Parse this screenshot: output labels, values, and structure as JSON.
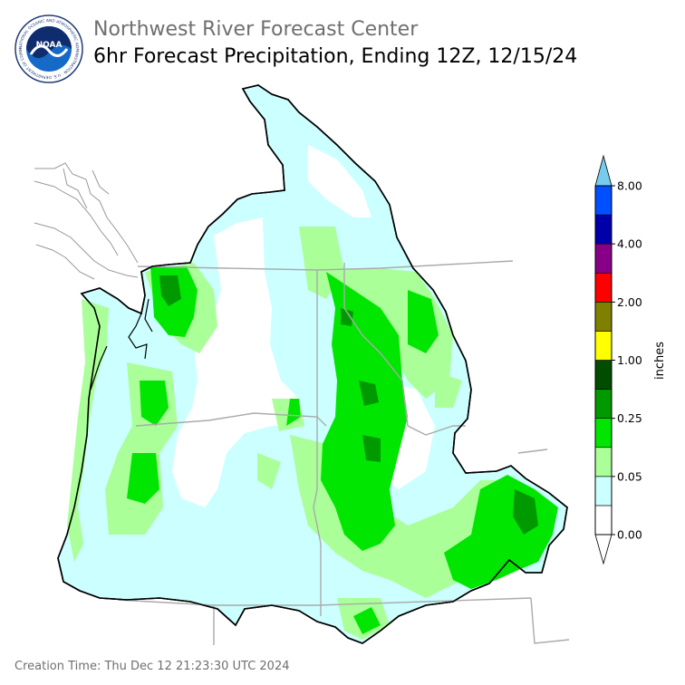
{
  "header": {
    "org_title": "Northwest River Forecast Center",
    "map_title": "6hr Forecast Precipitation, Ending 12Z, 12/15/24",
    "logo_text": "NOAA",
    "logo_ring_text": "NATIONAL OCEANIC AND ATMOSPHERIC ADMINISTRATION · U.S. DEPARTMENT OF COMMERCE"
  },
  "legend": {
    "unit_label": "inches",
    "ticks": [
      "0.00",
      "0.05",
      "0.25",
      "1.00",
      "2.00",
      "4.00",
      "8.00"
    ],
    "colors": [
      "#ffffff",
      "#ccffff",
      "#aaff99",
      "#00e600",
      "#009900",
      "#004d00",
      "#ffff00",
      "#808000",
      "#ff0000",
      "#880088",
      "#0000aa",
      "#0050ff"
    ],
    "overflow_color": "#77ccee"
  },
  "map_colors": {
    "outline": "#000000",
    "state_border": "#aaaaaa",
    "coast": "#999999"
  },
  "footer": {
    "creation_time": "Creation Time: Thu Dec 12 21:23:30 UTC 2024"
  }
}
